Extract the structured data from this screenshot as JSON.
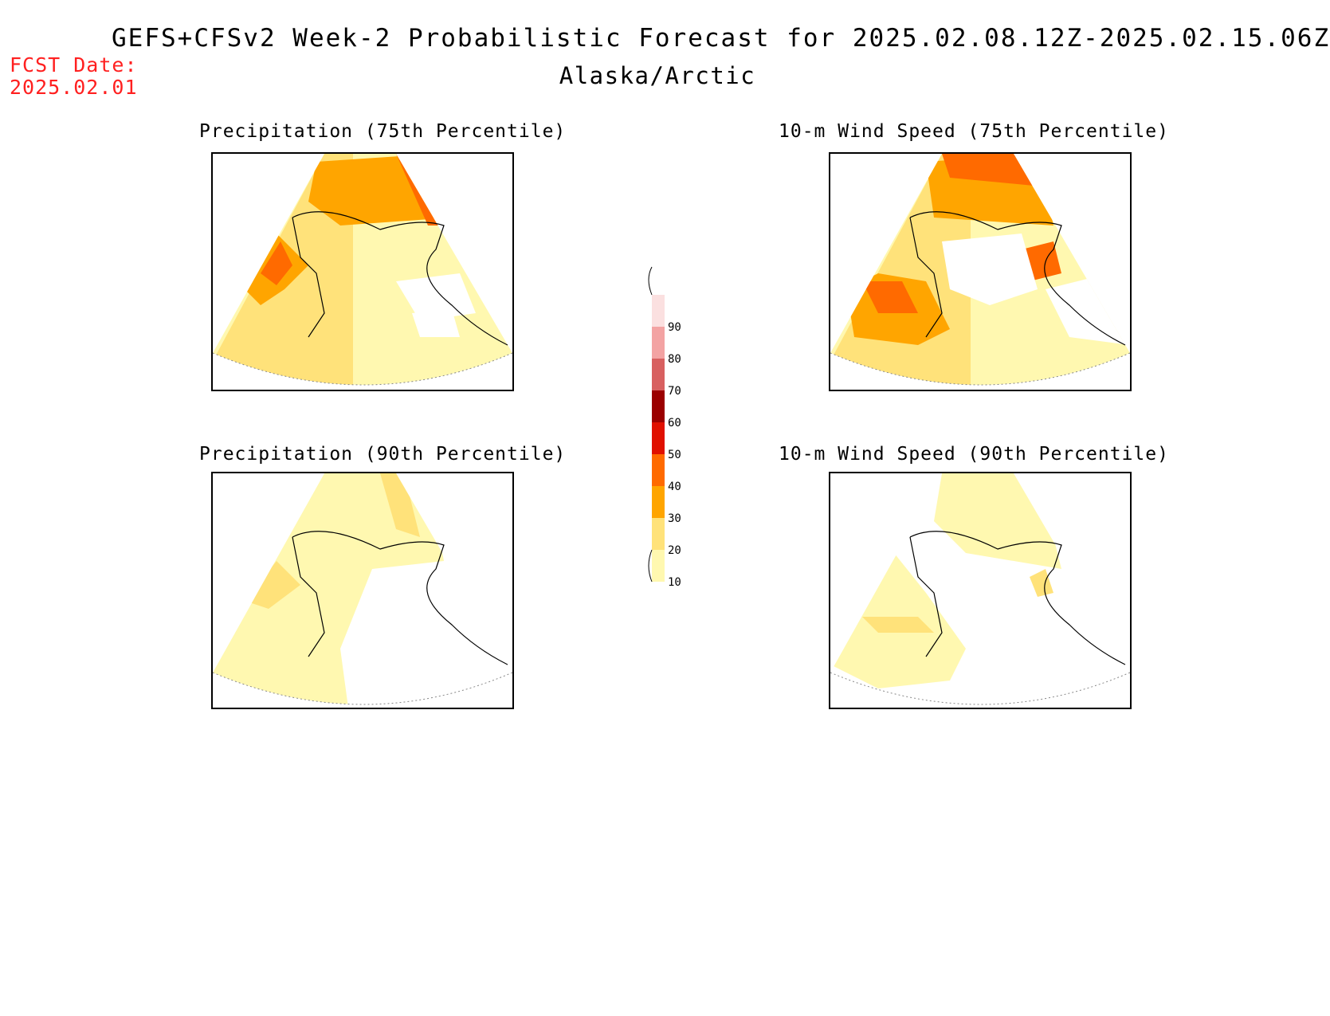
{
  "header": {
    "title": "GEFS+CFSv2 Week-2 Probabilistic Forecast for 2025.02.08.12Z-2025.02.15.06Z",
    "region": "Alaska/Arctic",
    "fcst_label": "FCST Date:",
    "fcst_date": "2025.02.01"
  },
  "panels": [
    {
      "title": "Precipitation (75th Percentile)",
      "palette": "precip75"
    },
    {
      "title": "10-m Wind Speed (75th Percentile)",
      "palette": "wind75"
    },
    {
      "title": "Precipitation (90th Percentile)",
      "palette": "precip90"
    },
    {
      "title": "10-m Wind Speed (90th Percentile)",
      "palette": "wind90"
    }
  ],
  "colorbar": {
    "levels": [
      "10",
      "20",
      "30",
      "40",
      "50",
      "60",
      "70",
      "80",
      "90"
    ],
    "colors": [
      "#fff8b0",
      "#ffe27a",
      "#ffa500",
      "#ff6a00",
      "#e01000",
      "#9b0000",
      "#d86060",
      "#f3a3a3",
      "#fbe0e0"
    ]
  }
}
